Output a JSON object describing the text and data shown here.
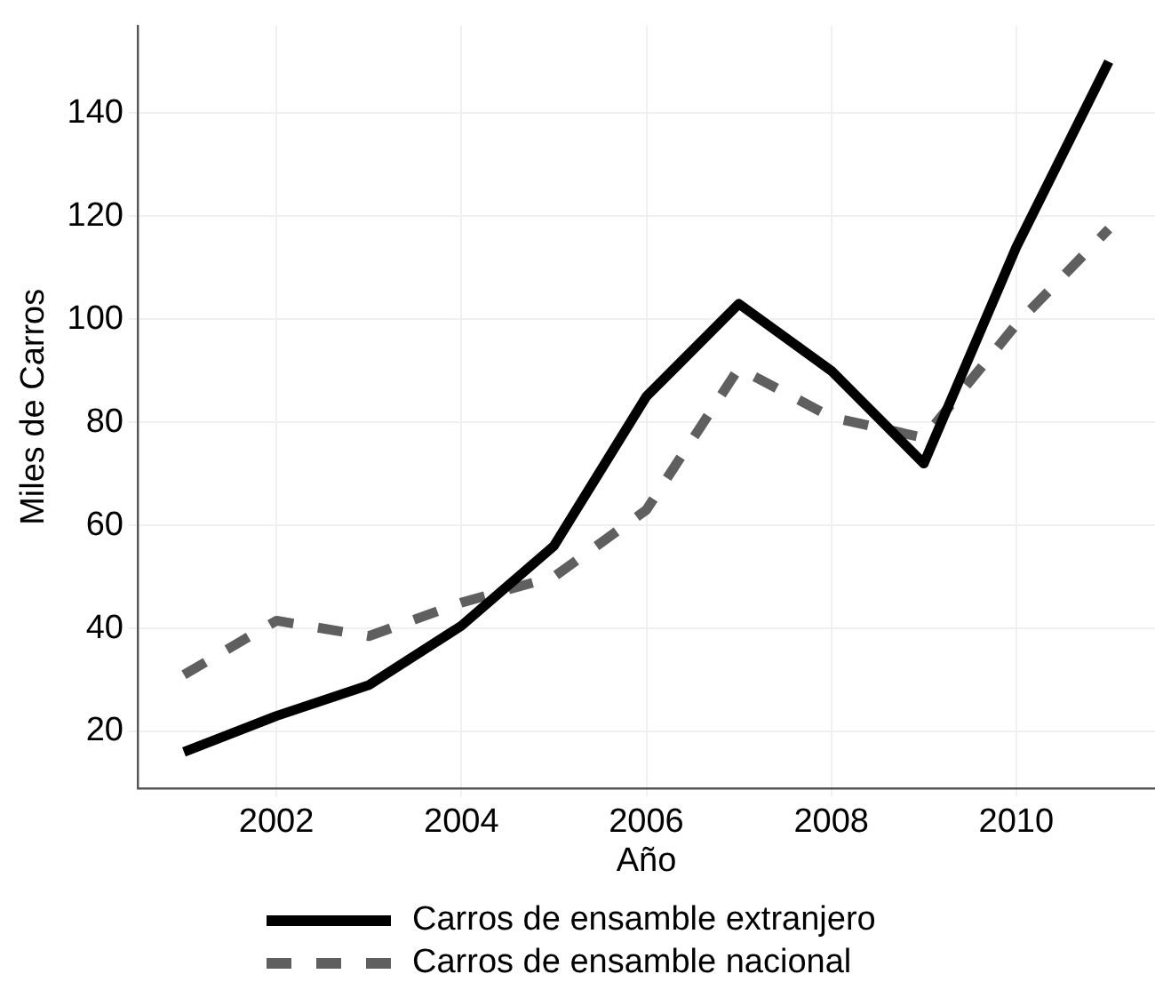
{
  "chart_data": {
    "type": "line",
    "xlabel": "Año",
    "ylabel": "Miles de Carros",
    "x": [
      2001,
      2002,
      2003,
      2004,
      2005,
      2006,
      2007,
      2008,
      2009,
      2010,
      2011
    ],
    "series": [
      {
        "name": "Carros de ensamble extranjero",
        "color": "#000000",
        "line_style": "solid",
        "values": [
          16,
          23,
          29,
          40.5,
          56,
          85,
          103,
          90,
          72,
          114,
          150
        ]
      },
      {
        "name": "Carros de ensamble nacional",
        "color": "#5f5f5f",
        "line_style": "dashed",
        "values": [
          31,
          41.5,
          38.5,
          45,
          50,
          63,
          90.5,
          81,
          77,
          99,
          117.5
        ]
      }
    ],
    "xlim": [
      2000.5,
      2011.5
    ],
    "xticks": [
      2002,
      2004,
      2006,
      2008,
      2010
    ],
    "ylim": [
      9,
      157
    ],
    "yticks": [
      20,
      40,
      60,
      80,
      100,
      120,
      140
    ],
    "grid": true,
    "legend": "bottom",
    "marker": "none"
  }
}
